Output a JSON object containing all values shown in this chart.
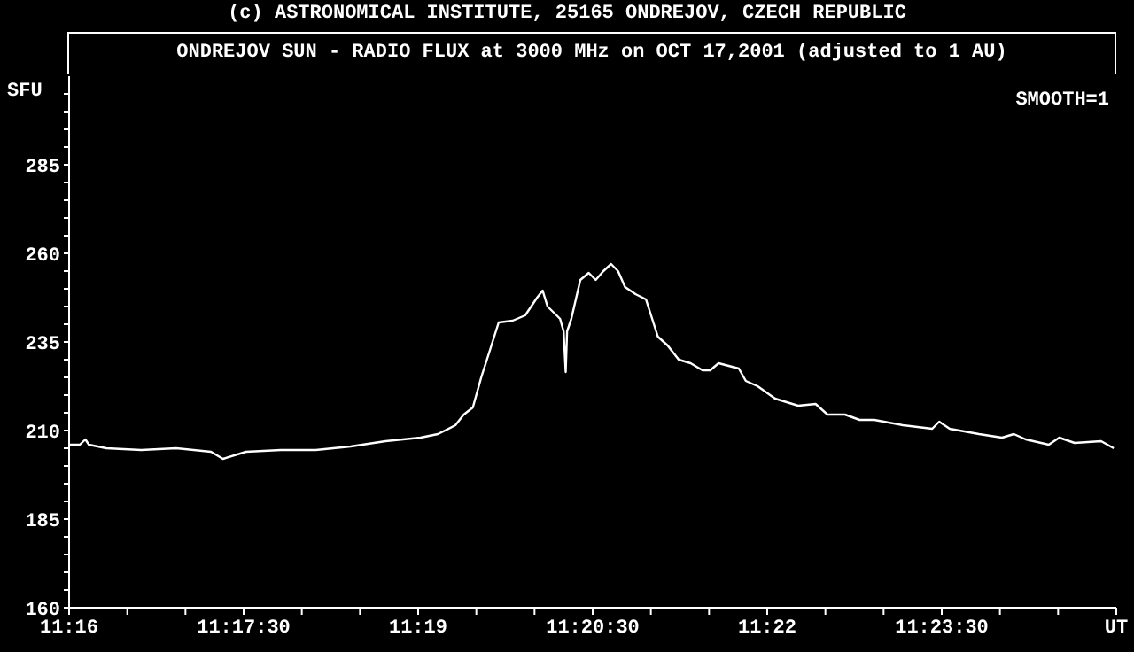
{
  "chart_data": {
    "type": "line",
    "subtitle": "(c) ASTRONOMICAL INSTITUTE, 25165 ONDREJOV, CZECH REPUBLIC",
    "title": "ONDREJOV SUN - RADIO FLUX at 3000 MHz on OCT 17,2001 (adjusted to 1 AU)",
    "ylabel": "SFU",
    "annotations": [
      "SMOOTH=1"
    ],
    "x": [
      11.2667,
      11.2682,
      11.269,
      11.2695,
      11.272,
      11.277,
      11.282,
      11.287,
      11.2887,
      11.292,
      11.297,
      11.302,
      11.307,
      11.312,
      11.317,
      11.3195,
      11.322,
      11.3232,
      11.3245,
      11.3257,
      11.327,
      11.3282,
      11.3302,
      11.332,
      11.3337,
      11.3345,
      11.3352,
      11.3365,
      11.337,
      11.3375,
      11.3378,
      11.338,
      11.3386,
      11.3399,
      11.3411,
      11.3421,
      11.3432,
      11.3443,
      11.3453,
      11.3463,
      11.3478,
      11.3493,
      11.351,
      11.3524,
      11.354,
      11.3557,
      11.3574,
      11.3585,
      11.3597,
      11.3626,
      11.3636,
      11.3653,
      11.3678,
      11.3711,
      11.3736,
      11.3753,
      11.3778,
      11.3799,
      11.382,
      11.3861,
      11.3903,
      11.3913,
      11.3928,
      11.397,
      11.4003,
      11.402,
      11.4037,
      11.407,
      11.4085,
      11.4107,
      11.4145,
      11.4163
    ],
    "values": [
      206,
      206,
      207.5,
      206,
      205,
      204.5,
      205,
      204,
      202,
      204,
      204.5,
      204.5,
      205.5,
      207,
      208,
      209,
      211.5,
      214.5,
      216.5,
      225,
      233,
      240.5,
      241,
      242.5,
      247.5,
      249.5,
      245,
      242.5,
      241.5,
      238,
      226.5,
      238,
      241.5,
      252.5,
      254.5,
      252.5,
      255,
      257,
      255,
      250.5,
      248.5,
      247,
      236.5,
      234,
      230,
      229,
      227,
      227,
      229,
      227.5,
      224,
      222.5,
      219,
      217,
      217.5,
      214.5,
      214.5,
      213,
      213,
      211.5,
      210.5,
      212.5,
      210.5,
      209,
      208,
      209,
      207.5,
      206,
      208,
      206.5,
      207,
      205
    ],
    "color": "#ffffff",
    "marker": "none",
    "line_style": "solid",
    "xlim": [
      11.266667,
      11.416667
    ],
    "xticks": [
      {
        "value": 11.266667,
        "label": "11:16"
      },
      {
        "value": 11.275,
        "label": null
      },
      {
        "value": 11.283333,
        "label": null
      },
      {
        "value": 11.291667,
        "label": "11:17:30"
      },
      {
        "value": 11.3,
        "label": null
      },
      {
        "value": 11.308333,
        "label": null
      },
      {
        "value": 11.316667,
        "label": "11:19"
      },
      {
        "value": 11.325,
        "label": null
      },
      {
        "value": 11.333333,
        "label": null
      },
      {
        "value": 11.341667,
        "label": "11:20:30"
      },
      {
        "value": 11.35,
        "label": null
      },
      {
        "value": 11.358333,
        "label": null
      },
      {
        "value": 11.366667,
        "label": "11:22"
      },
      {
        "value": 11.375,
        "label": null
      },
      {
        "value": 11.383333,
        "label": null
      },
      {
        "value": 11.391667,
        "label": "11:23:30"
      },
      {
        "value": 11.4,
        "label": null
      },
      {
        "value": 11.408333,
        "label": null
      },
      {
        "value": 11.416667,
        "label": "UT"
      }
    ],
    "ylim": [
      160,
      310
    ],
    "yticks": [
      160,
      {
        "value": 165,
        "label": null
      },
      {
        "value": 170,
        "label": null
      },
      {
        "value": 175,
        "label": null
      },
      {
        "value": 180,
        "label": null
      },
      185,
      {
        "value": 190,
        "label": null
      },
      {
        "value": 195,
        "label": null
      },
      {
        "value": 200,
        "label": null
      },
      {
        "value": 205,
        "label": null
      },
      210,
      {
        "value": 215,
        "label": null
      },
      {
        "value": 220,
        "label": null
      },
      {
        "value": 225,
        "label": null
      },
      {
        "value": 230,
        "label": null
      },
      235,
      {
        "value": 240,
        "label": null
      },
      {
        "value": 245,
        "label": null
      },
      {
        "value": 250,
        "label": null
      },
      {
        "value": 255,
        "label": null
      },
      260,
      {
        "value": 265,
        "label": null
      },
      {
        "value": 270,
        "label": null
      },
      {
        "value": 275,
        "label": null
      },
      {
        "value": 280,
        "label": null
      },
      285,
      {
        "value": 290,
        "label": null
      },
      {
        "value": 295,
        "label": null
      },
      {
        "value": 300,
        "label": null
      },
      {
        "value": 305,
        "label": null
      }
    ]
  }
}
